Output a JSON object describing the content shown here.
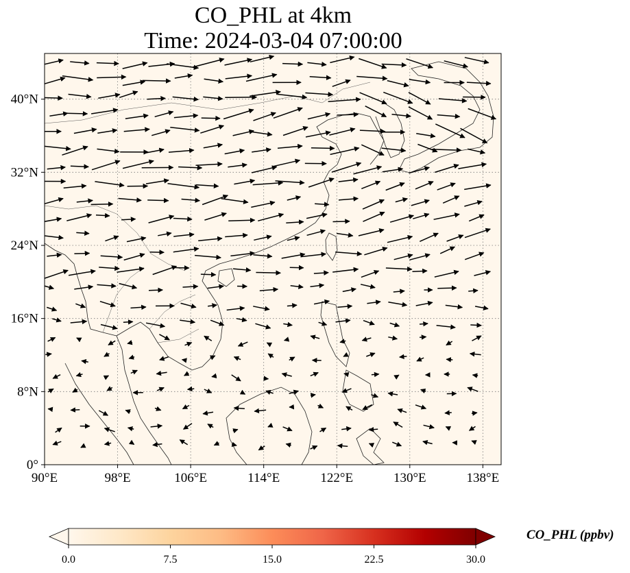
{
  "title_line1": "CO_PHL at 4km",
  "title_line2": "Time: 2024-03-04 07:00:00",
  "map": {
    "extent": {
      "lon": [
        90,
        140
      ],
      "lat": [
        0,
        45
      ]
    },
    "lon_ticks": [
      {
        "value": 90,
        "label": "90°E"
      },
      {
        "value": 98,
        "label": "98°E"
      },
      {
        "value": 106,
        "label": "106°E"
      },
      {
        "value": 114,
        "label": "114°E"
      },
      {
        "value": 122,
        "label": "122°E"
      },
      {
        "value": 130,
        "label": "130°E"
      },
      {
        "value": 138,
        "label": "138°E"
      }
    ],
    "lat_ticks": [
      {
        "value": 0,
        "label": "0°"
      },
      {
        "value": 8,
        "label": "8°N"
      },
      {
        "value": 16,
        "label": "16°N"
      },
      {
        "value": 24,
        "label": "24°N"
      },
      {
        "value": 32,
        "label": "32°N"
      },
      {
        "value": 40,
        "label": "40°N"
      }
    ],
    "background_color": "#fff7ec",
    "gridlines": true,
    "wind_vectors": "westerly flow, strong north of 20°N, weak and variable south of 16°N"
  },
  "colorbar": {
    "label": "CO_PHL (ppbv)",
    "colormap": "OrRd",
    "range": [
      0.0,
      30.0
    ],
    "ticks": [
      "0.0",
      "7.5",
      "15.0",
      "22.5",
      "30.0"
    ],
    "extend": "both",
    "colors": [
      "#fff7ec",
      "#fee8c8",
      "#fdd49e",
      "#fdbb84",
      "#fc8d59",
      "#ef6548",
      "#d7301f",
      "#b30000",
      "#7f0000"
    ]
  }
}
